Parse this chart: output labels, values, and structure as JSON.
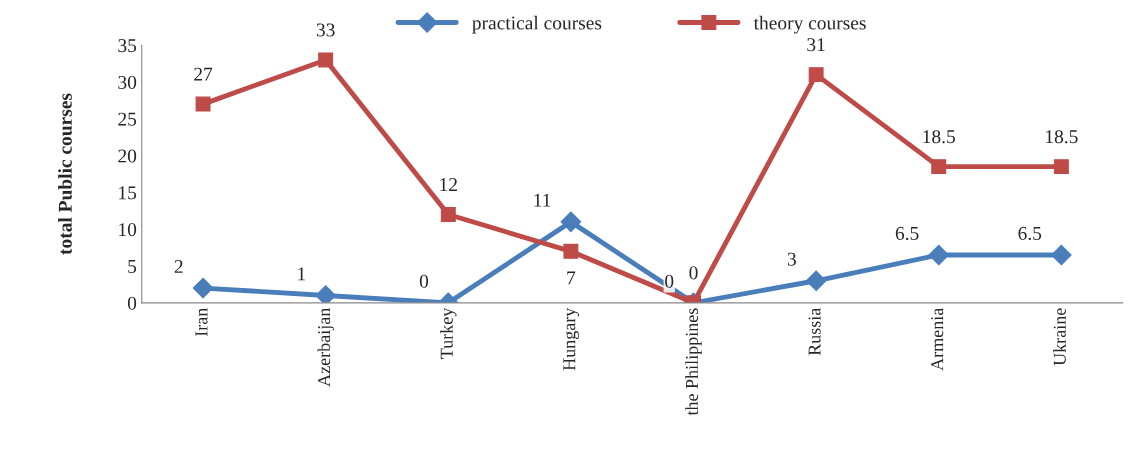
{
  "chart_data": {
    "type": "line",
    "ylabel": "total Public courses",
    "categories": [
      "Iran",
      "Azerbaijan",
      "Turkey",
      "Hungary",
      "the Philippines",
      "Russia",
      "Armenia",
      "Ukraine"
    ],
    "series": [
      {
        "name": "practical courses",
        "color": "#4a7ebb",
        "marker": "diamond",
        "values": [
          2,
          1,
          0,
          11,
          0,
          3,
          6.5,
          6.5
        ]
      },
      {
        "name": "theory courses",
        "color": "#be4b48",
        "marker": "square",
        "values": [
          27,
          33,
          12,
          7,
          0,
          31,
          18.5,
          18.5
        ]
      }
    ],
    "ylim": [
      0,
      35
    ],
    "yticks": [
      0,
      5,
      10,
      15,
      20,
      25,
      30,
      35
    ],
    "grid": false,
    "legend": "top",
    "data_labels": true,
    "line_style": "solid"
  }
}
